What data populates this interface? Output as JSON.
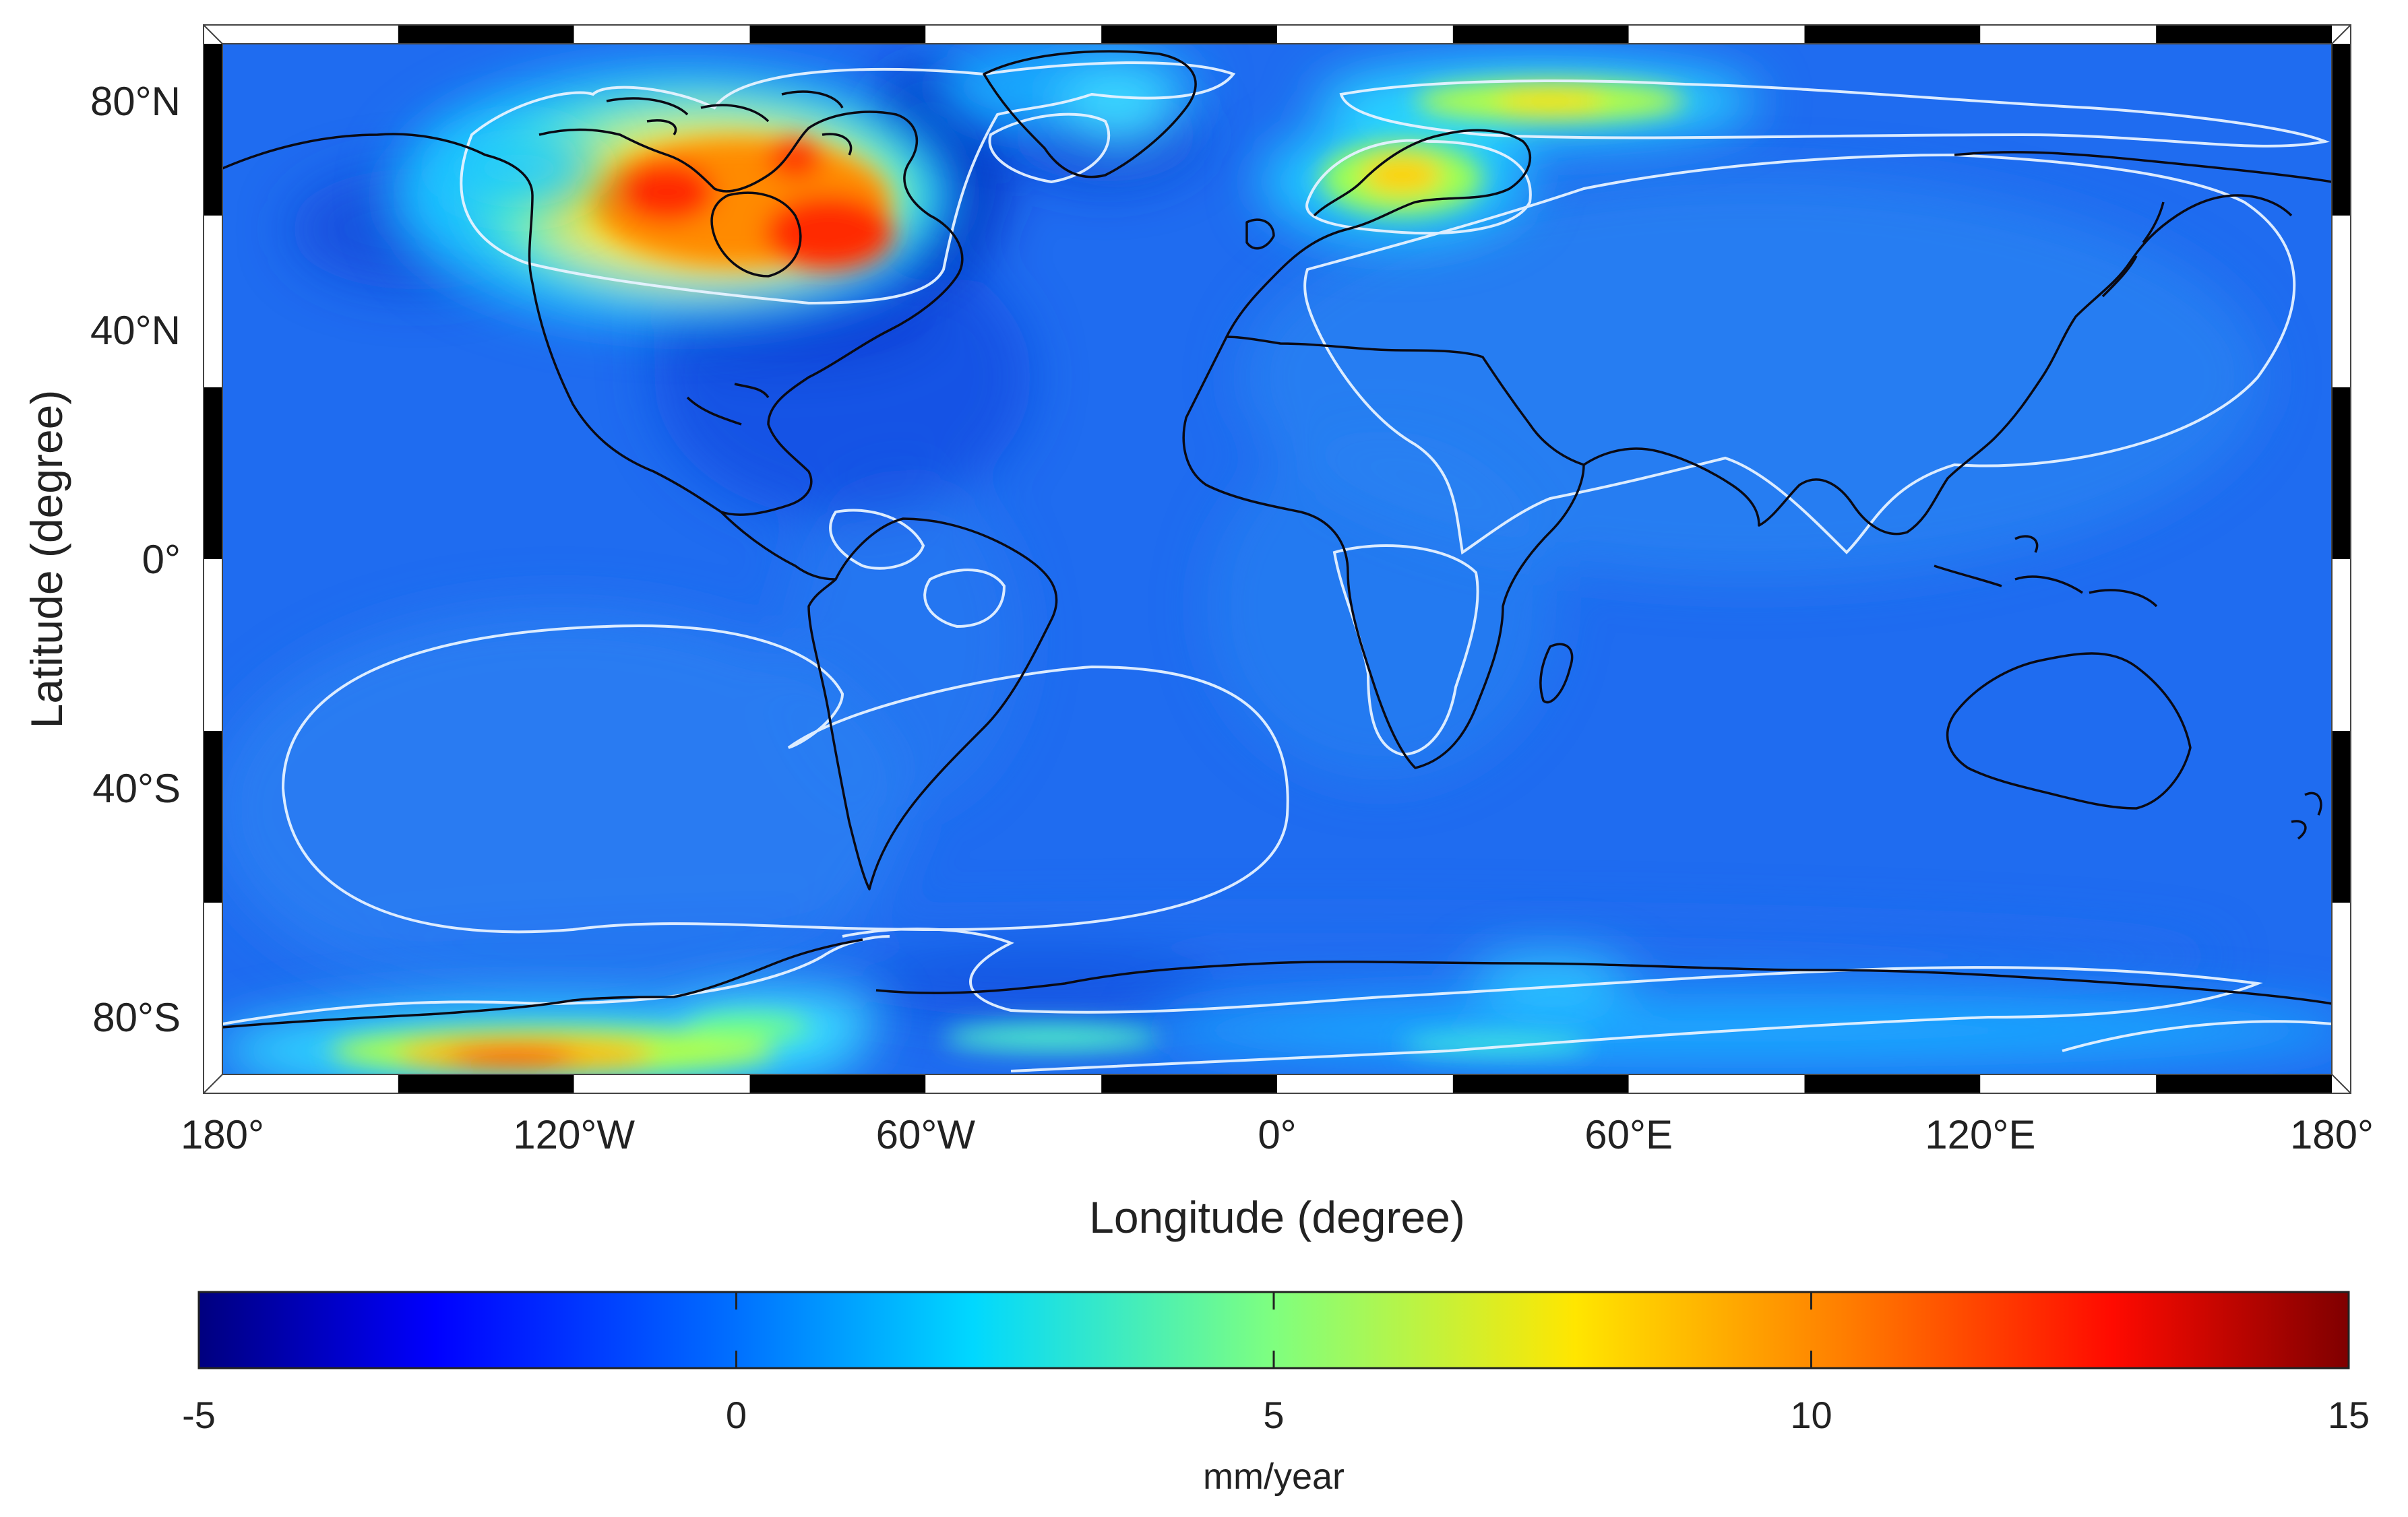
{
  "map": {
    "xlabel": "Longitude (degree)",
    "ylabel": "Latitude (degree)",
    "lon_range": [
      -180,
      180
    ],
    "lat_range": [
      -90,
      90
    ],
    "x_ticks": [
      {
        "value": -180,
        "label": "180°"
      },
      {
        "value": -120,
        "label": "120°W"
      },
      {
        "value": -60,
        "label": "60°W"
      },
      {
        "value": 0,
        "label": "0°"
      },
      {
        "value": 60,
        "label": "60°E"
      },
      {
        "value": 120,
        "label": "120°E"
      },
      {
        "value": 180,
        "label": "180°"
      }
    ],
    "y_ticks": [
      {
        "value": 80,
        "label": "80°N"
      },
      {
        "value": 40,
        "label": "40°N"
      },
      {
        "value": 0,
        "label": "0°"
      },
      {
        "value": -40,
        "label": "40°S"
      },
      {
        "value": -80,
        "label": "80°S"
      }
    ],
    "background_value": -0.8,
    "hotspots": [
      {
        "region": "hudson-bay",
        "lon": -80,
        "lat": 58,
        "peak": 11
      },
      {
        "region": "canada-west",
        "lon": -102,
        "lat": 62,
        "peak": 11.5
      },
      {
        "region": "greenland",
        "lon": -45,
        "lat": 74,
        "peak": 3
      },
      {
        "region": "scandinavia",
        "lon": 20,
        "lat": 64,
        "peak": 7
      },
      {
        "region": "barents-kara",
        "lon": 45,
        "lat": 79,
        "peak": 6
      },
      {
        "region": "west-antarctica",
        "lon": -118,
        "lat": -83,
        "peak": 11
      },
      {
        "region": "antarctic-peninsula",
        "lon": -70,
        "lat": -75,
        "peak": 4
      },
      {
        "region": "east-antarctica",
        "lon": 90,
        "lat": -78,
        "peak": 2
      }
    ],
    "colors": {
      "contour": "#e6f2ff",
      "coastline": "#0a0a14",
      "frame_black": "#000000",
      "frame_white": "#ffffff"
    }
  },
  "colorbar": {
    "min": -5,
    "max": 15,
    "ticks": [
      "-5",
      "0",
      "5",
      "10",
      "15"
    ],
    "tick_values": [
      -5,
      0,
      5,
      10,
      15
    ],
    "label": "mm/year",
    "colormap": "jet"
  }
}
